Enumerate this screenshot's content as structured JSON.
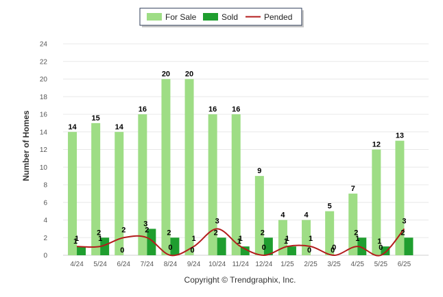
{
  "chart_data": {
    "type": "bar",
    "categories": [
      "4/24",
      "5/24",
      "6/24",
      "7/24",
      "8/24",
      "9/24",
      "10/24",
      "11/24",
      "12/24",
      "1/25",
      "2/25",
      "3/25",
      "4/25",
      "5/25",
      "6/25"
    ],
    "series": [
      {
        "name": "For Sale",
        "type": "bar",
        "color": "#9edd85",
        "values": [
          14,
          15,
          14,
          16,
          20,
          20,
          16,
          16,
          9,
          4,
          4,
          5,
          7,
          12,
          13
        ]
      },
      {
        "name": "Sold",
        "type": "bar",
        "color": "#1f9e2f",
        "values": [
          1,
          2,
          0,
          3,
          2,
          0,
          2,
          1,
          2,
          1,
          0,
          0,
          2,
          1,
          2
        ]
      },
      {
        "name": "Pended",
        "type": "line",
        "color": "#b31b1b",
        "values": [
          1,
          1,
          2,
          2,
          0,
          1,
          3,
          1,
          0,
          1,
          1,
          0,
          1,
          0,
          3
        ]
      }
    ],
    "xlabel": "",
    "ylabel": "Number of Homes",
    "ylim": [
      0,
      24
    ],
    "yticks": [
      0,
      2,
      4,
      6,
      8,
      10,
      12,
      14,
      16,
      18,
      20,
      22,
      24
    ],
    "grid": true,
    "legend_position": "top-center"
  },
  "footer": {
    "copyright": "Copyright © Trendgraphix, Inc."
  }
}
